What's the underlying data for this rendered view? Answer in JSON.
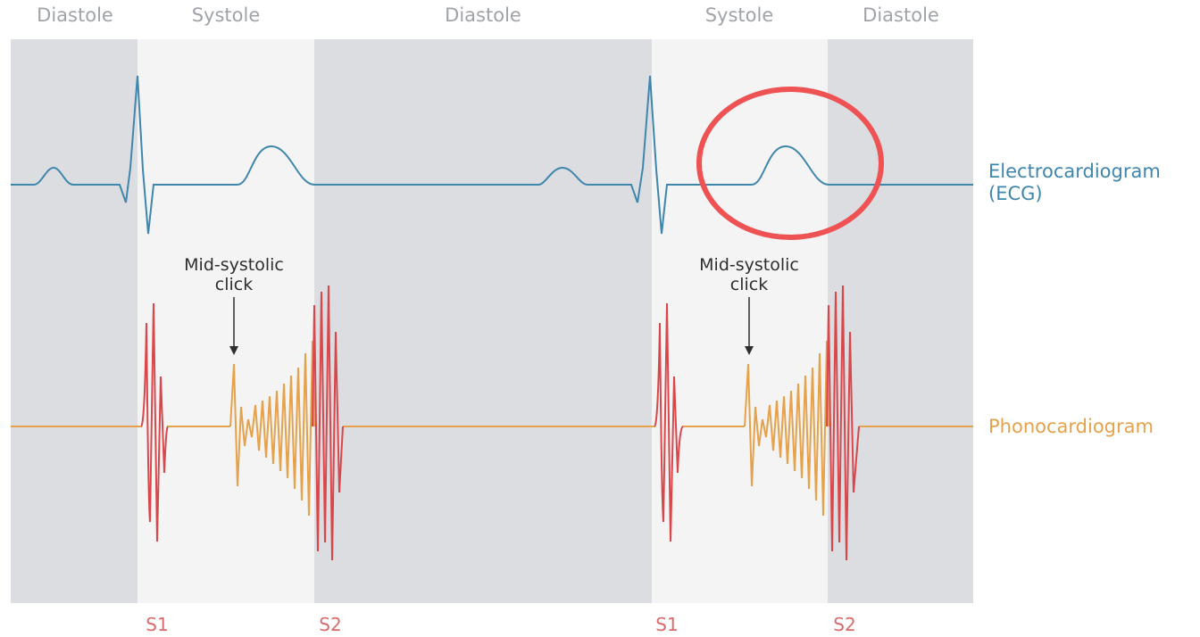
{
  "phases": [
    {
      "label": "Diastole",
      "kind": "diastole"
    },
    {
      "label": "Systole",
      "kind": "systole"
    },
    {
      "label": "Diastole",
      "kind": "diastole"
    },
    {
      "label": "Systole",
      "kind": "systole"
    },
    {
      "label": "Diastole",
      "kind": "diastole"
    }
  ],
  "traces": {
    "ecg_label_line1": "Electrocardiogram",
    "ecg_label_line2": "(ECG)",
    "pcg_label": "Phonocardiogram"
  },
  "annotations": {
    "click_line1": "Mid-systolic",
    "click_line2": "click"
  },
  "heart_sounds": {
    "first": "S1",
    "second": "S2"
  },
  "colors": {
    "diastole_bg": "#dcdde1",
    "systole_bg": "#f4f4f5",
    "ecg": "#3f86ad",
    "heart_sound": "#d9474b",
    "murmur": "#e5a24b",
    "highlight": "#ee5253"
  }
}
